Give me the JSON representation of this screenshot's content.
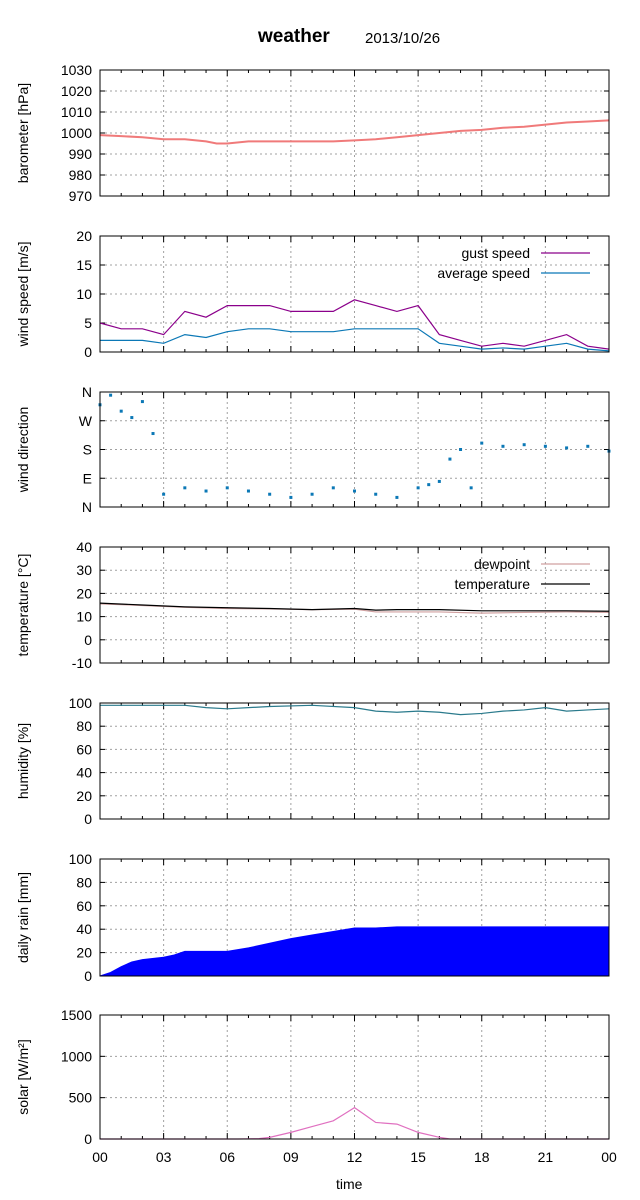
{
  "header": {
    "title": "weather",
    "date": "2013/10/26"
  },
  "x_axis": {
    "label": "time",
    "ticks": [
      "00",
      "03",
      "06",
      "09",
      "12",
      "15",
      "18",
      "21",
      "00"
    ]
  },
  "colors": {
    "pressure": "#f07a7a",
    "gust": "#8b008b",
    "average": "#0b78b6",
    "direction": "#0b78b6",
    "dewpoint": "#d0a0a0",
    "temperature": "#000000",
    "humidity": "#2a7a8c",
    "rain": "#0000ff",
    "solar": "#e070c0"
  },
  "chart_data": [
    {
      "type": "line",
      "ylabel": "barometer [hPa]",
      "ylim": [
        970,
        1030
      ],
      "yticks": [
        "970",
        "980",
        "990",
        "1000",
        "1010",
        "1020",
        "1030"
      ],
      "grid": true,
      "x": [
        0,
        1,
        2,
        3,
        4,
        5,
        5.5,
        6,
        7,
        8,
        9,
        10,
        11,
        12,
        13,
        14,
        15,
        16,
        17,
        18,
        19,
        20,
        21,
        22,
        23,
        24
      ],
      "series": [
        {
          "values": [
            999,
            998.5,
            998,
            997,
            997,
            996,
            995,
            995,
            996,
            996,
            996,
            996,
            996,
            996.5,
            997,
            998,
            999,
            1000,
            1001,
            1001.5,
            1002.5,
            1003,
            1004,
            1005,
            1005.5,
            1006
          ]
        }
      ]
    },
    {
      "type": "line",
      "ylabel": "wind speed [m/s]",
      "ylim": [
        0,
        20
      ],
      "yticks": [
        "0",
        "5",
        "10",
        "15",
        "20"
      ],
      "legend": "top-right",
      "grid": true,
      "x": [
        0,
        1,
        2,
        3,
        4,
        5,
        6,
        7,
        8,
        9,
        10,
        11,
        12,
        13,
        14,
        15,
        16,
        17,
        18,
        19,
        20,
        21,
        22,
        23,
        24
      ],
      "series": [
        {
          "name": "gust speed",
          "values": [
            5,
            4,
            4,
            3,
            7,
            6,
            8,
            8,
            8,
            7,
            7,
            7,
            9,
            8,
            7,
            8,
            3,
            2,
            1,
            1.5,
            1,
            2,
            3,
            1,
            0.5
          ]
        },
        {
          "name": "average speed",
          "values": [
            2,
            2,
            2,
            1.5,
            3,
            2.5,
            3.5,
            4,
            4,
            3.5,
            3.5,
            3.5,
            4,
            4,
            4,
            4,
            1.5,
            1,
            0.5,
            0.7,
            0.5,
            1,
            1.5,
            0.5,
            0.2
          ]
        }
      ]
    },
    {
      "type": "scatter",
      "ylabel": "wind direction",
      "ylim": [
        0,
        360
      ],
      "yticks": [
        "N",
        "E",
        "S",
        "W",
        "N"
      ],
      "grid": true,
      "x": [
        0,
        0.5,
        1,
        1.5,
        2,
        2.5,
        3,
        4,
        5,
        6,
        7,
        8,
        9,
        10,
        11,
        12,
        13,
        14,
        15,
        15.5,
        16,
        16.5,
        17,
        17.5,
        18,
        19,
        20,
        21,
        22,
        23,
        24
      ],
      "series": [
        {
          "values": [
            320,
            350,
            300,
            280,
            330,
            230,
            40,
            60,
            50,
            60,
            50,
            40,
            30,
            40,
            60,
            50,
            40,
            30,
            60,
            70,
            80,
            150,
            180,
            60,
            200,
            190,
            195,
            190,
            185,
            190,
            175
          ]
        }
      ]
    },
    {
      "type": "line",
      "ylabel": "temperature [°C]",
      "ylim": [
        -10,
        40
      ],
      "yticks": [
        "-10",
        "0",
        "10",
        "20",
        "30",
        "40"
      ],
      "legend": "top-right",
      "grid": true,
      "x": [
        0,
        2,
        4,
        6,
        8,
        10,
        12,
        13,
        14,
        16,
        18,
        20,
        22,
        24
      ],
      "series": [
        {
          "name": "dewpoint",
          "values": [
            15.5,
            14.8,
            14,
            13.5,
            13.3,
            13,
            13.2,
            12,
            12,
            12,
            11.5,
            11.8,
            12,
            11.8
          ]
        },
        {
          "name": "temperature",
          "values": [
            15.8,
            15,
            14.2,
            13.8,
            13.5,
            13,
            13.5,
            12.8,
            13,
            13,
            12.5,
            12.5,
            12.5,
            12.3
          ]
        }
      ]
    },
    {
      "type": "line",
      "ylabel": "humidity [%]",
      "ylim": [
        0,
        100
      ],
      "yticks": [
        "0",
        "20",
        "40",
        "60",
        "80",
        "100"
      ],
      "grid": true,
      "x": [
        0,
        2,
        4,
        5,
        6,
        8,
        10,
        12,
        13,
        14,
        15,
        16,
        17,
        18,
        19,
        20,
        21,
        22,
        23,
        24
      ],
      "series": [
        {
          "values": [
            98,
            98,
            98,
            96,
            95,
            97,
            98,
            96,
            93,
            92,
            93,
            92,
            90,
            91,
            93,
            94,
            96,
            93,
            94,
            95
          ]
        }
      ]
    },
    {
      "type": "area",
      "ylabel": "daily rain [mm]",
      "ylim": [
        0,
        100
      ],
      "yticks": [
        "0",
        "20",
        "40",
        "60",
        "80",
        "100"
      ],
      "grid": true,
      "x": [
        0,
        0.5,
        1,
        1.5,
        2,
        3,
        3.5,
        4,
        5,
        6,
        7,
        8,
        9,
        10,
        11,
        12,
        13,
        14,
        15,
        18,
        21,
        24
      ],
      "series": [
        {
          "values": [
            0,
            3,
            8,
            12,
            14,
            16,
            18,
            21,
            21,
            21,
            24,
            28,
            32,
            35,
            38,
            41,
            41,
            42,
            42,
            42,
            42,
            42
          ]
        }
      ]
    },
    {
      "type": "line",
      "ylabel": "solar [W/m²]",
      "ylim": [
        0,
        1500
      ],
      "yticks": [
        "0",
        "500",
        "1000",
        "1500"
      ],
      "grid": true,
      "x": [
        0,
        6.5,
        7.5,
        8,
        9,
        10,
        11,
        11.5,
        12,
        12.5,
        13,
        14,
        15,
        16,
        16.5,
        24
      ],
      "series": [
        {
          "values": [
            0,
            0,
            5,
            20,
            80,
            150,
            220,
            300,
            380,
            290,
            200,
            180,
            80,
            20,
            0,
            0
          ]
        }
      ]
    }
  ]
}
